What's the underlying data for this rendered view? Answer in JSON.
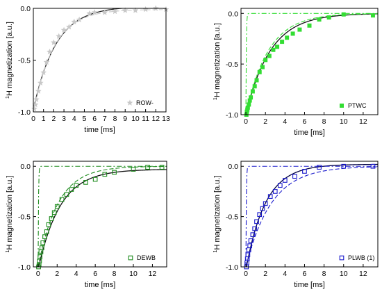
{
  "chart_data": [
    {
      "type": "scatter",
      "title": "",
      "xlabel": "time [ms]",
      "ylabel": "1H magnetization [a.u.]",
      "ylabel_sup": "1",
      "ylabel_rest": "H magnetization [a.u.]",
      "xlim": [
        0,
        13
      ],
      "ylim": [
        -1.0,
        0.0
      ],
      "xticks": [
        0,
        1,
        2,
        3,
        4,
        5,
        6,
        7,
        8,
        9,
        10,
        11,
        12,
        13
      ],
      "yticks": [
        -1.0,
        -0.5,
        0.0
      ],
      "ytick_labels": [
        "-1.0",
        "-0.5",
        "0.0"
      ],
      "legend": {
        "label": "ROW-",
        "marker": "star",
        "position": "bottom-right"
      },
      "colors": {
        "marker": "#c8c8c8",
        "fit": "#222222",
        "dash": "#c8c8c8",
        "dashdot": "#c8c8c8"
      },
      "series": [
        {
          "name": "ROW-",
          "kind": "points",
          "marker": "star",
          "x": [
            0.1,
            0.2,
            0.3,
            0.5,
            0.7,
            1.0,
            1.3,
            1.6,
            2.0,
            2.5,
            3.0,
            3.5,
            4.0,
            4.5,
            5.5,
            6.0,
            7.0,
            8.0,
            9.0,
            10.0,
            11.0,
            12.0,
            13.0
          ],
          "y": [
            -0.97,
            -0.93,
            -0.88,
            -0.8,
            -0.72,
            -0.62,
            -0.52,
            -0.42,
            -0.33,
            -0.27,
            -0.21,
            -0.18,
            -0.13,
            -0.11,
            -0.05,
            -0.04,
            -0.04,
            -0.03,
            -0.02,
            -0.02,
            -0.01,
            0.0,
            -0.01
          ]
        },
        {
          "kind": "fit",
          "style": "solid",
          "A": 1.0,
          "tau": 2.2,
          "offset": 0.02
        },
        {
          "kind": "fit",
          "style": "dash",
          "A": 1.0,
          "tau": 2.0,
          "offset": -0.01
        },
        {
          "kind": "fit",
          "style": "dashdot",
          "A": 0.0,
          "tau": 0.1,
          "offset": 0.0
        }
      ]
    },
    {
      "type": "scatter",
      "title": "",
      "xlabel": "time [ms]",
      "ylabel": "1H magnetization [a.u.]",
      "ylabel_sup": "1",
      "ylabel_rest": "H magnetization [a.u.]",
      "xlim": [
        -0.5,
        13.5
      ],
      "ylim": [
        -1.0,
        0.05
      ],
      "xticks": [
        0,
        2,
        4,
        6,
        8,
        10,
        12
      ],
      "yticks": [
        -1.0,
        -0.5,
        0.0
      ],
      "ytick_labels": [
        "-1.0",
        "-0.5",
        "0.0"
      ],
      "legend": {
        "label": "PTWC",
        "marker": "filled-square",
        "position": "bottom-right"
      },
      "colors": {
        "marker": "#33dd33",
        "fit": "#111111",
        "dash": "#33dd33",
        "dashdot": "#33dd33"
      },
      "series": [
        {
          "name": "PTWC",
          "kind": "points",
          "marker": "filled-square",
          "x": [
            0.05,
            0.1,
            0.15,
            0.2,
            0.3,
            0.4,
            0.5,
            0.7,
            0.9,
            1.1,
            1.4,
            1.7,
            2.0,
            2.4,
            2.8,
            3.2,
            3.7,
            4.2,
            4.8,
            5.5,
            6.5,
            7.5,
            8.5,
            10.0,
            13.0
          ],
          "y": [
            -1.0,
            -0.97,
            -0.95,
            -0.93,
            -0.9,
            -0.86,
            -0.83,
            -0.77,
            -0.72,
            -0.66,
            -0.58,
            -0.53,
            -0.46,
            -0.42,
            -0.36,
            -0.33,
            -0.28,
            -0.24,
            -0.2,
            -0.16,
            -0.12,
            -0.06,
            -0.04,
            -0.01,
            -0.02
          ]
        },
        {
          "kind": "fit",
          "style": "solid",
          "A": 1.0,
          "tau": 2.5,
          "offset": 0.0
        },
        {
          "kind": "fit",
          "style": "dash",
          "A": 1.0,
          "tau": 2.3,
          "offset": 0.0
        },
        {
          "kind": "fit",
          "style": "dashdot",
          "A": 1.0,
          "tau": 0.04,
          "offset": 0.0
        }
      ]
    },
    {
      "type": "scatter",
      "title": "",
      "xlabel": "time [ms]",
      "ylabel": "1H magnetization [a.u.]",
      "ylabel_sup": "1",
      "ylabel_rest": "H magnetization [a.u.]",
      "xlim": [
        -0.5,
        13.5
      ],
      "ylim": [
        -1.0,
        0.05
      ],
      "xticks": [
        0,
        2,
        4,
        6,
        8,
        10,
        12
      ],
      "yticks": [
        -1.0,
        -0.5,
        0.0
      ],
      "ytick_labels": [
        "-1.0",
        "-0.5",
        "0.0"
      ],
      "legend": {
        "label": "DEWB",
        "marker": "open-square",
        "position": "bottom-right"
      },
      "colors": {
        "marker": "#1e8c1e",
        "fit": "#111111",
        "dash": "#1e8c1e",
        "dashdot": "#1e8c1e"
      },
      "series": [
        {
          "name": "DEWB",
          "kind": "points",
          "marker": "open-square",
          "x": [
            0.05,
            0.1,
            0.15,
            0.2,
            0.3,
            0.4,
            0.5,
            0.7,
            0.9,
            1.1,
            1.4,
            1.7,
            2.0,
            2.5,
            3.0,
            3.5,
            4.0,
            5.0,
            6.0,
            7.0,
            8.0,
            10.0,
            11.5,
            13.0
          ],
          "y": [
            -1.0,
            -0.98,
            -0.94,
            -0.9,
            -0.85,
            -0.81,
            -0.76,
            -0.7,
            -0.65,
            -0.58,
            -0.52,
            -0.46,
            -0.4,
            -0.33,
            -0.28,
            -0.23,
            -0.19,
            -0.16,
            -0.13,
            -0.08,
            -0.06,
            -0.03,
            -0.01,
            -0.01
          ]
        },
        {
          "kind": "fit",
          "style": "solid",
          "A": 1.0,
          "tau": 2.3,
          "offset": -0.03
        },
        {
          "kind": "fit",
          "style": "dash",
          "A": 1.0,
          "tau": 2.1,
          "offset": 0.0
        },
        {
          "kind": "fit",
          "style": "dashdot",
          "A": 1.0,
          "tau": 0.04,
          "offset": 0.0
        }
      ]
    },
    {
      "type": "scatter",
      "title": "",
      "xlabel": "time [ms]",
      "ylabel": "1H magnetization [a.u.]",
      "ylabel_sup": "1",
      "ylabel_rest": "H magnetization [a.u.]",
      "xlim": [
        -0.5,
        13.5
      ],
      "ylim": [
        -1.0,
        0.05
      ],
      "xticks": [
        0,
        2,
        4,
        6,
        8,
        10,
        12
      ],
      "yticks": [
        -1.0,
        -0.5,
        0.0
      ],
      "ytick_labels": [
        "-1.0",
        "-0.5",
        "0.0"
      ],
      "legend": {
        "label": "PLWB (1)",
        "marker": "open-square",
        "position": "bottom-right"
      },
      "colors": {
        "marker": "#1a1acc",
        "fit": "#000044",
        "dash": "#1a1acc",
        "dashdot": "#1a1acc"
      },
      "series": [
        {
          "name": "PLWB (1)",
          "kind": "points",
          "marker": "open-square",
          "x": [
            0.05,
            0.1,
            0.15,
            0.2,
            0.3,
            0.4,
            0.5,
            0.7,
            0.9,
            1.1,
            1.4,
            1.7,
            2.0,
            2.5,
            3.0,
            3.5,
            4.0,
            5.0,
            6.0,
            7.5,
            10.0,
            13.0
          ],
          "y": [
            -1.0,
            -0.96,
            -0.92,
            -0.88,
            -0.83,
            -0.79,
            -0.74,
            -0.68,
            -0.62,
            -0.55,
            -0.48,
            -0.42,
            -0.37,
            -0.3,
            -0.25,
            -0.19,
            -0.14,
            -0.1,
            -0.05,
            -0.01,
            0.0,
            0.0
          ]
        },
        {
          "kind": "fit",
          "style": "solid",
          "A": 1.05,
          "tau": 2.0,
          "offset": 0.02
        },
        {
          "kind": "fit",
          "style": "dash",
          "A": 1.0,
          "tau": 2.6,
          "offset": 0.0
        },
        {
          "kind": "fit",
          "style": "dashdot",
          "A": 1.0,
          "tau": 0.04,
          "offset": 0.0
        }
      ]
    }
  ]
}
